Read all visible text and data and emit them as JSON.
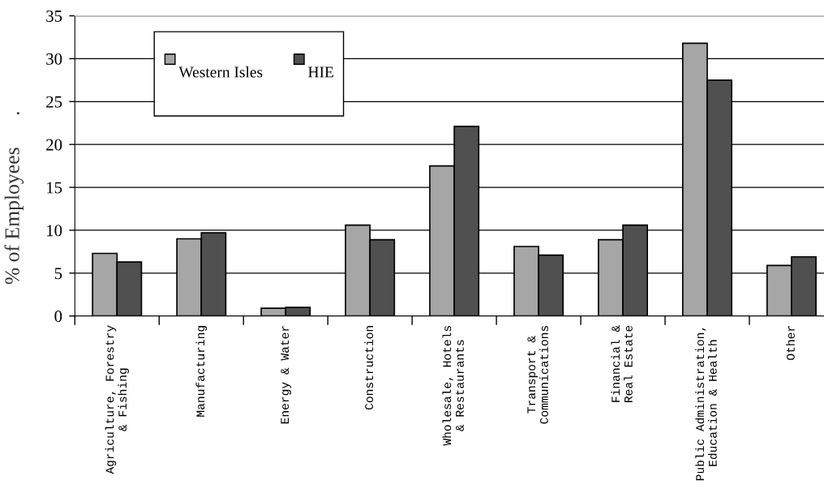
{
  "chart_data": {
    "type": "bar",
    "ylabel": "% of Employees      .",
    "categories": [
      "Agriculture, Forestry\n& Fishing",
      "Manufacturing",
      "Energy & Water",
      "Construction",
      "Wholesale, Hotels\n& Restaurants",
      "Transport &\nCommunications",
      "Financial &\nReal Estate",
      "Public Administration,\nEducation & Health",
      "Other"
    ],
    "series": [
      {
        "name": "Western Isles",
        "color": "#a6a6a6",
        "values": [
          7.3,
          9.0,
          0.9,
          10.6,
          17.5,
          8.1,
          8.9,
          31.8,
          5.9
        ]
      },
      {
        "name": "HIE",
        "color": "#505050",
        "values": [
          6.3,
          9.7,
          1.0,
          8.9,
          22.1,
          7.1,
          10.6,
          27.5,
          6.9
        ]
      }
    ],
    "ylim": [
      0,
      35
    ],
    "yticks": [
      0,
      5,
      10,
      15,
      20,
      25,
      30,
      35
    ],
    "grid": "y",
    "legend": "top left"
  }
}
